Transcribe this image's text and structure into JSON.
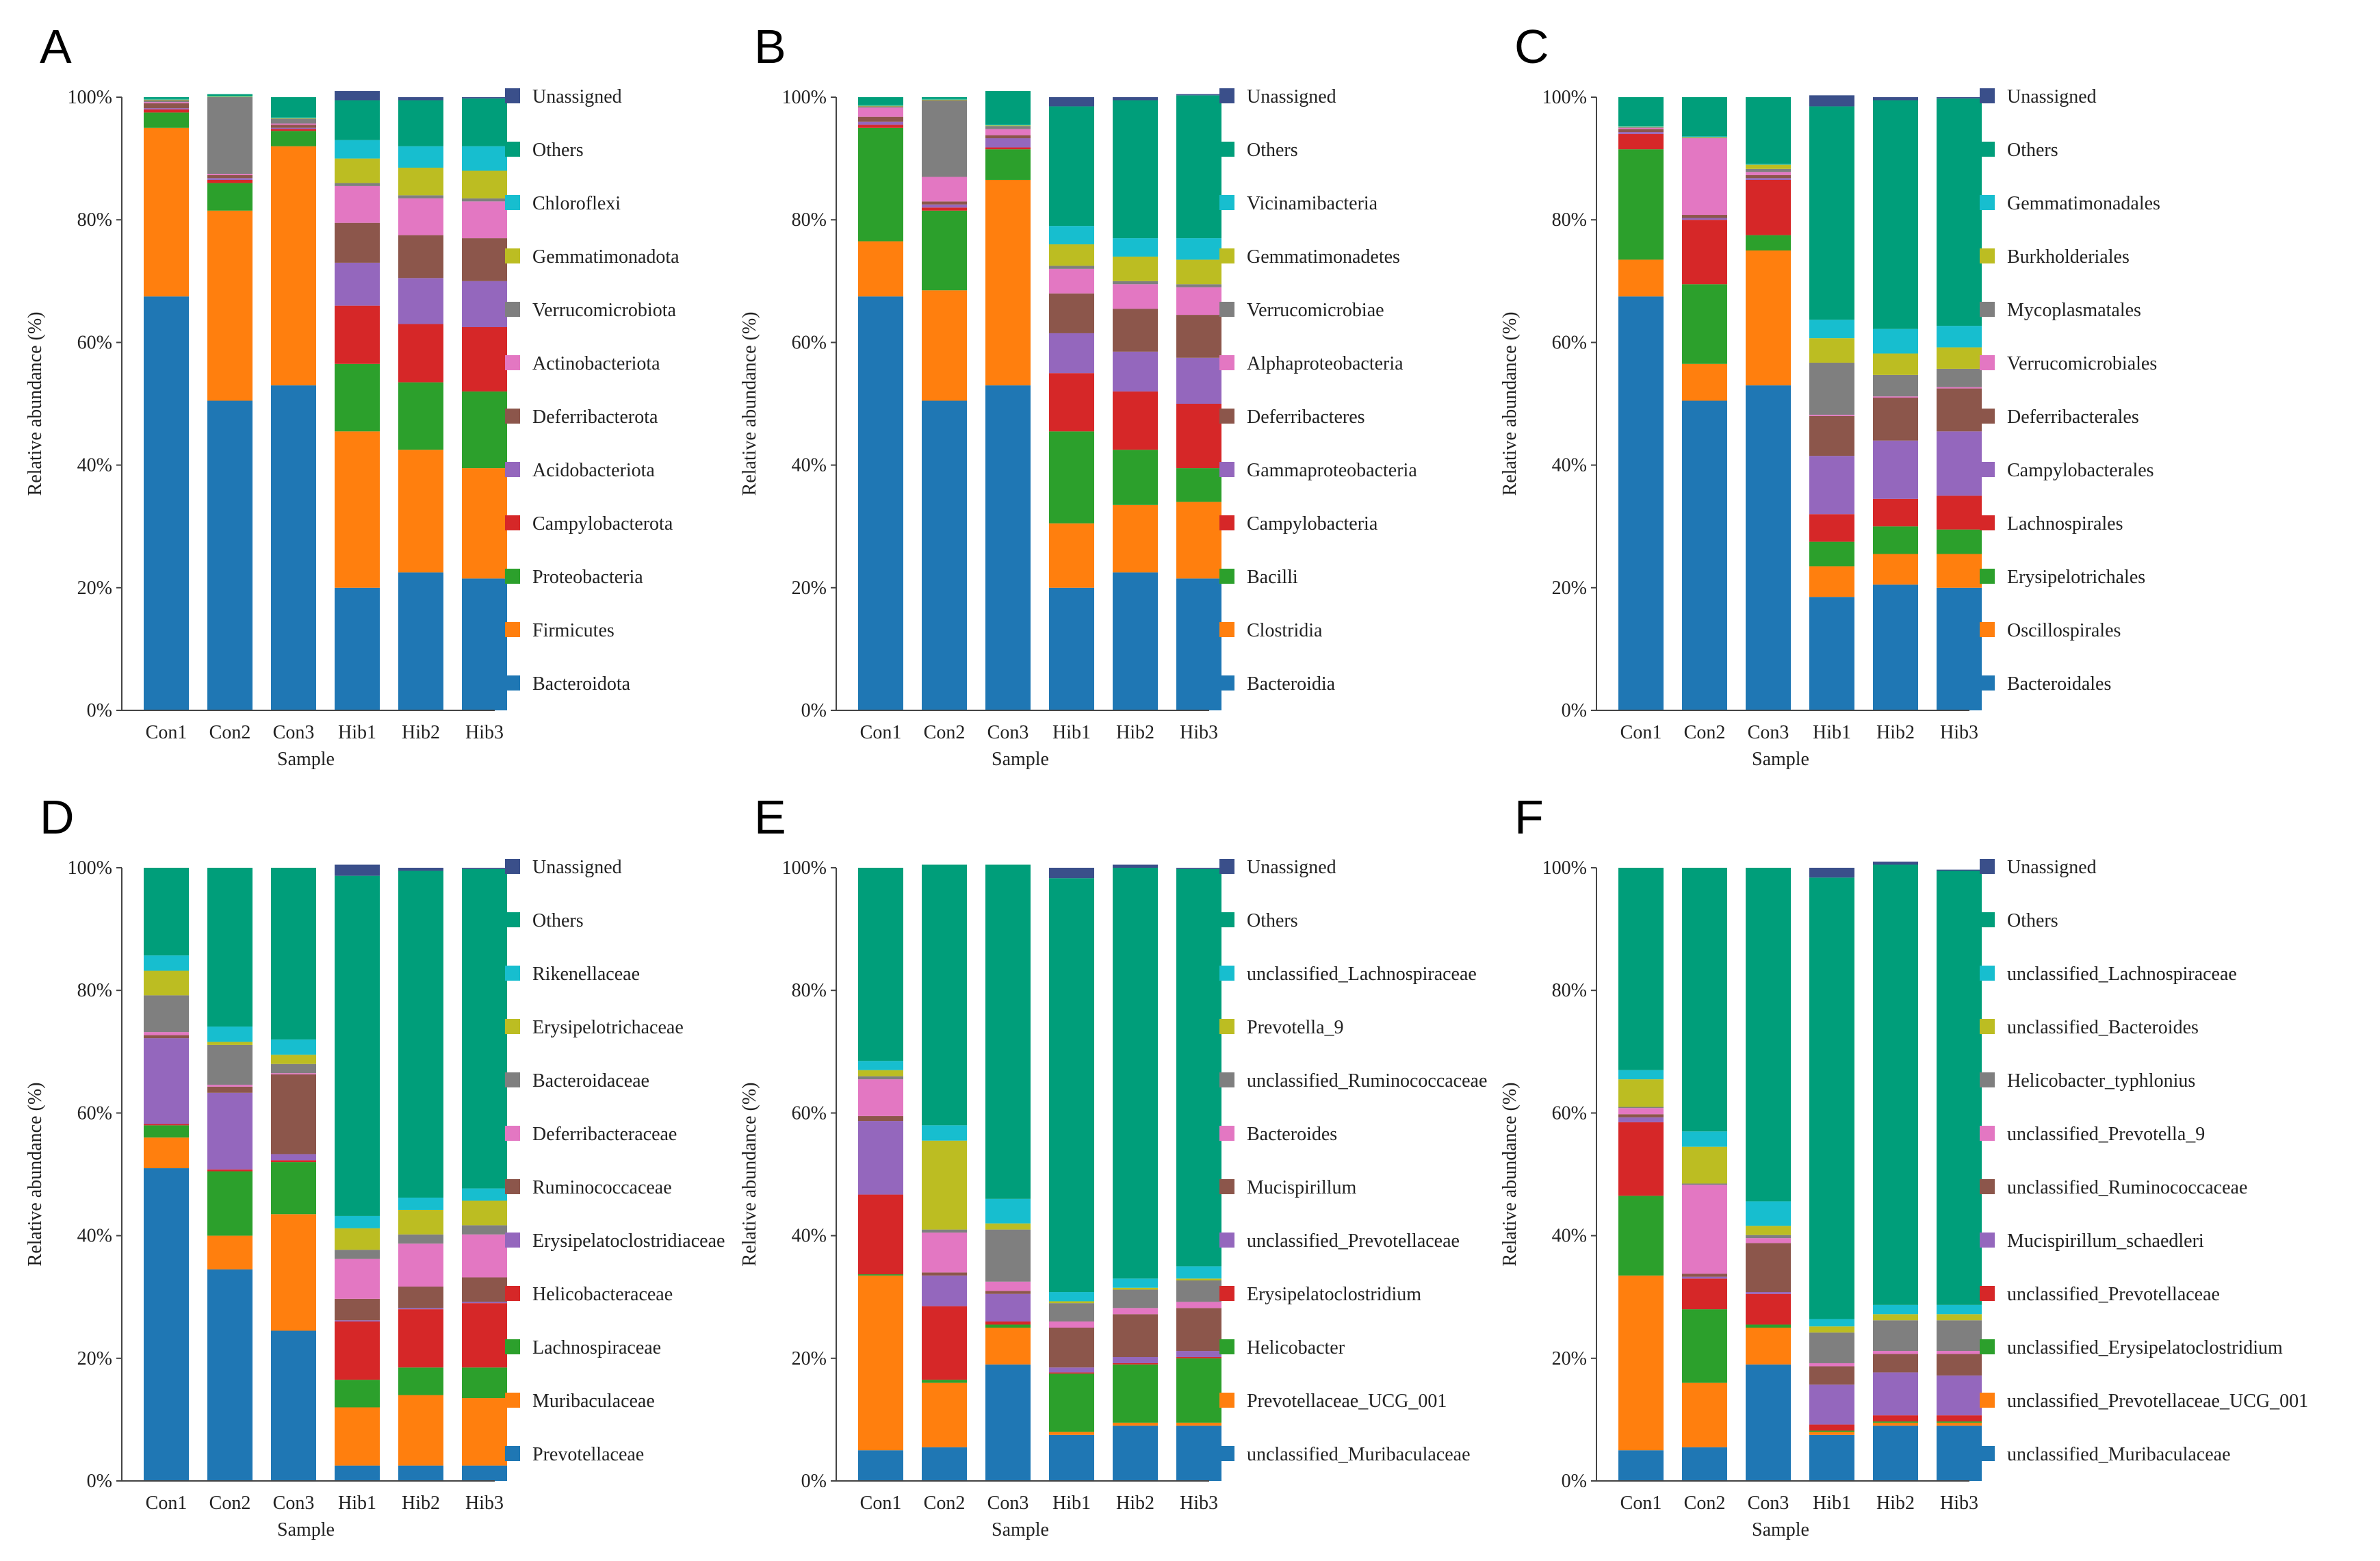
{
  "colors": [
    "#1f77b4",
    "#ff7f0e",
    "#2ca02c",
    "#d62728",
    "#9467bd",
    "#8c564b",
    "#e377c2",
    "#7f7f7f",
    "#bcbd22",
    "#17becf",
    "#009e7a",
    "#3a4f8a"
  ],
  "chart_data": [
    {
      "type": "bar",
      "panel": "A",
      "xlabel": "Sample",
      "ylabel": "Relative abundance (%)",
      "ylim": [
        0,
        100
      ],
      "yticks": [
        "0%",
        "20%",
        "40%",
        "60%",
        "80%",
        "100%"
      ],
      "categories": [
        "Con1",
        "Con2",
        "Con3",
        "Hib1",
        "Hib2",
        "Hib3"
      ],
      "series": [
        {
          "name": "Bacteroidota",
          "values": [
            67.5,
            50.5,
            53.0,
            20.0,
            22.5,
            21.5
          ]
        },
        {
          "name": "Firmicutes",
          "values": [
            27.5,
            31.0,
            39.0,
            25.5,
            20.0,
            18.0
          ]
        },
        {
          "name": "Proteobacteria",
          "values": [
            2.5,
            4.5,
            2.5,
            11.0,
            11.0,
            12.5
          ]
        },
        {
          "name": "Campylobacterota",
          "values": [
            0.5,
            0.5,
            0.3,
            9.5,
            9.5,
            10.5
          ]
        },
        {
          "name": "Acidobacteriota",
          "values": [
            0.2,
            0.3,
            0.2,
            7.0,
            7.5,
            7.5
          ]
        },
        {
          "name": "Deferribacterota",
          "values": [
            0.8,
            0.5,
            0.5,
            6.5,
            7.0,
            7.0
          ]
        },
        {
          "name": "Actinobacteriota",
          "values": [
            0.2,
            0.2,
            0.2,
            6.0,
            6.0,
            6.0
          ]
        },
        {
          "name": "Verrucomicrobiota",
          "values": [
            0.3,
            12.5,
            0.8,
            0.5,
            0.5,
            0.5
          ]
        },
        {
          "name": "Gemmatimonadota",
          "values": [
            0.1,
            0.1,
            0.1,
            4.0,
            4.5,
            4.5
          ]
        },
        {
          "name": "Chloroflexi",
          "values": [
            0.1,
            0.1,
            0.1,
            3.0,
            3.5,
            4.0
          ]
        },
        {
          "name": "Others",
          "values": [
            0.3,
            0.3,
            3.3,
            6.5,
            7.5,
            7.8
          ]
        },
        {
          "name": "Unassigned",
          "values": [
            0.0,
            0.0,
            0.0,
            1.5,
            0.5,
            0.2
          ]
        }
      ]
    },
    {
      "type": "bar",
      "panel": "B",
      "xlabel": "Sample",
      "ylabel": "Relative abundance (%)",
      "ylim": [
        0,
        100
      ],
      "yticks": [
        "0%",
        "20%",
        "40%",
        "60%",
        "80%",
        "100%"
      ],
      "categories": [
        "Con1",
        "Con2",
        "Con3",
        "Hib1",
        "Hib2",
        "Hib3"
      ],
      "series": [
        {
          "name": "Bacteroidia",
          "values": [
            67.5,
            50.5,
            53.0,
            20.0,
            22.5,
            21.5
          ]
        },
        {
          "name": "Clostridia",
          "values": [
            9.0,
            18.0,
            33.5,
            10.5,
            11.0,
            12.5
          ]
        },
        {
          "name": "Bacilli",
          "values": [
            18.5,
            13.0,
            5.0,
            15.0,
            9.0,
            5.5
          ]
        },
        {
          "name": "Campylobacteria",
          "values": [
            0.5,
            0.5,
            0.3,
            9.5,
            9.5,
            10.5
          ]
        },
        {
          "name": "Gammaproteobacteria",
          "values": [
            0.5,
            0.5,
            1.5,
            6.5,
            6.5,
            7.5
          ]
        },
        {
          "name": "Deferribacteres",
          "values": [
            0.8,
            0.5,
            0.5,
            6.5,
            7.0,
            7.0
          ]
        },
        {
          "name": "Alphaproteobacteria",
          "values": [
            1.5,
            4.0,
            1.0,
            4.0,
            4.0,
            4.5
          ]
        },
        {
          "name": "Verrucomicrobiae",
          "values": [
            0.2,
            12.5,
            0.5,
            0.5,
            0.5,
            0.5
          ]
        },
        {
          "name": "Gemmatimonadetes",
          "values": [
            0.1,
            0.1,
            0.1,
            3.5,
            4.0,
            4.0
          ]
        },
        {
          "name": "Vicinamibacteria",
          "values": [
            0.1,
            0.1,
            0.1,
            3.0,
            3.0,
            3.5
          ]
        },
        {
          "name": "Others",
          "values": [
            1.3,
            0.3,
            5.5,
            19.5,
            22.5,
            23.3
          ]
        },
        {
          "name": "Unassigned",
          "values": [
            0.0,
            0.0,
            0.0,
            1.5,
            0.5,
            0.2
          ]
        }
      ]
    },
    {
      "type": "bar",
      "panel": "C",
      "xlabel": "Sample",
      "ylabel": "Relative abundance (%)",
      "ylim": [
        0,
        100
      ],
      "yticks": [
        "0%",
        "20%",
        "40%",
        "60%",
        "80%",
        "100%"
      ],
      "categories": [
        "Con1",
        "Con2",
        "Con3",
        "Hib1",
        "Hib2",
        "Hib3"
      ],
      "series": [
        {
          "name": "Bacteroidales",
          "values": [
            67.5,
            50.5,
            53.0,
            18.5,
            20.5,
            20.0
          ]
        },
        {
          "name": "Oscillospirales",
          "values": [
            6.0,
            6.0,
            22.0,
            5.0,
            5.0,
            5.5
          ]
        },
        {
          "name": "Erysipelotrichales",
          "values": [
            18.0,
            13.0,
            2.5,
            4.0,
            4.5,
            4.0
          ]
        },
        {
          "name": "Lachnospirales",
          "values": [
            2.5,
            10.5,
            9.0,
            4.5,
            4.5,
            5.5
          ]
        },
        {
          "name": "Campylobacterales",
          "values": [
            0.3,
            0.3,
            0.3,
            9.5,
            9.5,
            10.5
          ]
        },
        {
          "name": "Deferribacterales",
          "values": [
            0.5,
            0.5,
            0.5,
            6.5,
            7.0,
            7.0
          ]
        },
        {
          "name": "Verrucomicrobiales",
          "values": [
            0.2,
            12.5,
            0.5,
            0.2,
            0.2,
            0.2
          ]
        },
        {
          "name": "Mycoplasmatales",
          "values": [
            0.1,
            0.1,
            0.5,
            8.5,
            3.5,
            3.0
          ]
        },
        {
          "name": "Burkholderiales",
          "values": [
            0.1,
            0.1,
            0.7,
            4.0,
            3.5,
            3.5
          ]
        },
        {
          "name": "Gemmatimonadales",
          "values": [
            0.1,
            0.1,
            0.1,
            3.0,
            4.0,
            3.5
          ]
        },
        {
          "name": "Others",
          "values": [
            4.7,
            6.4,
            10.9,
            34.8,
            37.3,
            37.1
          ]
        },
        {
          "name": "Unassigned",
          "values": [
            0.0,
            0.0,
            0.0,
            1.8,
            0.5,
            0.2
          ]
        }
      ]
    },
    {
      "type": "bar",
      "panel": "D",
      "xlabel": "Sample",
      "ylabel": "Relative abundance (%)",
      "ylim": [
        0,
        100
      ],
      "yticks": [
        "0%",
        "20%",
        "40%",
        "60%",
        "80%",
        "100%"
      ],
      "categories": [
        "Con1",
        "Con2",
        "Con3",
        "Hib1",
        "Hib2",
        "Hib3"
      ],
      "series": [
        {
          "name": "Prevotellaceae",
          "values": [
            51.0,
            34.5,
            24.5,
            2.5,
            2.5,
            2.5
          ]
        },
        {
          "name": "Muribaculaceae",
          "values": [
            5.0,
            5.5,
            19.0,
            9.5,
            11.5,
            11.0
          ]
        },
        {
          "name": "Lachnospiraceae",
          "values": [
            2.0,
            10.5,
            8.5,
            4.5,
            4.5,
            5.0
          ]
        },
        {
          "name": "Helicobacteraceae",
          "values": [
            0.2,
            0.3,
            0.3,
            9.5,
            9.5,
            10.5
          ]
        },
        {
          "name": "Erysipelatoclostridiaceae",
          "values": [
            14.0,
            12.5,
            1.0,
            0.2,
            0.2,
            0.2
          ]
        },
        {
          "name": "Ruminococcaceae",
          "values": [
            0.5,
            1.0,
            13.0,
            3.5,
            3.5,
            4.0
          ]
        },
        {
          "name": "Deferribacteraceae",
          "values": [
            0.5,
            0.3,
            0.2,
            6.5,
            7.0,
            7.0
          ]
        },
        {
          "name": "Bacteroidaceae",
          "values": [
            6.0,
            6.5,
            1.5,
            1.5,
            1.5,
            1.5
          ]
        },
        {
          "name": "Erysipelotrichaceae",
          "values": [
            4.0,
            0.5,
            1.5,
            3.5,
            4.0,
            4.0
          ]
        },
        {
          "name": "Rikenellaceae",
          "values": [
            2.5,
            2.5,
            2.5,
            2.0,
            2.0,
            2.0
          ]
        },
        {
          "name": "Others",
          "values": [
            14.3,
            25.9,
            28.0,
            55.5,
            53.3,
            52.1
          ]
        },
        {
          "name": "Unassigned",
          "values": [
            0.0,
            0.0,
            0.0,
            1.8,
            0.5,
            0.2
          ]
        }
      ]
    },
    {
      "type": "bar",
      "panel": "E",
      "xlabel": "Sample",
      "ylabel": "Relative abundance (%)",
      "ylim": [
        0,
        100
      ],
      "yticks": [
        "0%",
        "20%",
        "40%",
        "60%",
        "80%",
        "100%"
      ],
      "categories": [
        "Con1",
        "Con2",
        "Con3",
        "Hib1",
        "Hib2",
        "Hib3"
      ],
      "series": [
        {
          "name": "unclassified_Muribaculaceae",
          "values": [
            5.0,
            5.5,
            19.0,
            7.5,
            9.0,
            9.0
          ]
        },
        {
          "name": "Prevotellaceae_UCG_001",
          "values": [
            28.5,
            10.5,
            6.0,
            0.5,
            0.5,
            0.5
          ]
        },
        {
          "name": "Helicobacter",
          "values": [
            0.2,
            0.5,
            0.5,
            9.5,
            9.5,
            10.5
          ]
        },
        {
          "name": "Erysipelatoclostridium",
          "values": [
            13.0,
            12.0,
            0.5,
            0.2,
            0.2,
            0.2
          ]
        },
        {
          "name": "unclassified_Prevotellaceae",
          "values": [
            12.0,
            5.0,
            4.5,
            0.8,
            1.0,
            1.0
          ]
        },
        {
          "name": "Mucispirillum",
          "values": [
            0.8,
            0.5,
            0.5,
            6.5,
            7.0,
            7.0
          ]
        },
        {
          "name": "Bacteroides",
          "values": [
            6.0,
            6.5,
            1.5,
            1.0,
            1.0,
            1.0
          ]
        },
        {
          "name": "unclassified_Ruminococcaceae",
          "values": [
            0.5,
            0.5,
            8.5,
            3.0,
            3.0,
            3.5
          ]
        },
        {
          "name": "Prevotella_9",
          "values": [
            1.0,
            14.5,
            1.0,
            0.3,
            0.3,
            0.3
          ]
        },
        {
          "name": "unclassified_Lachnospiraceae",
          "values": [
            1.5,
            2.5,
            4.0,
            1.5,
            1.5,
            2.0
          ]
        },
        {
          "name": "Others",
          "values": [
            31.5,
            42.5,
            54.5,
            67.5,
            67.0,
            64.8
          ]
        },
        {
          "name": "Unassigned",
          "values": [
            0.0,
            0.0,
            0.0,
            1.7,
            0.5,
            0.2
          ]
        }
      ]
    },
    {
      "type": "bar",
      "panel": "F",
      "xlabel": "Sample",
      "ylabel": "Relative abundance (%)",
      "ylim": [
        0,
        100
      ],
      "yticks": [
        "0%",
        "20%",
        "40%",
        "60%",
        "80%",
        "100%"
      ],
      "categories": [
        "Con1",
        "Con2",
        "Con3",
        "Hib1",
        "Hib2",
        "Hib3"
      ],
      "series": [
        {
          "name": "unclassified_Muribaculaceae",
          "values": [
            5.0,
            5.5,
            19.0,
            7.5,
            9.0,
            9.0
          ]
        },
        {
          "name": "unclassified_Prevotellaceae_UCG_001",
          "values": [
            28.5,
            10.5,
            6.0,
            0.5,
            0.5,
            0.5
          ]
        },
        {
          "name": "unclassified_Erysipelatoclostridium",
          "values": [
            13.0,
            12.0,
            0.5,
            0.2,
            0.2,
            0.2
          ]
        },
        {
          "name": "unclassified_Prevotellaceae",
          "values": [
            12.0,
            5.0,
            5.0,
            1.0,
            1.0,
            1.0
          ]
        },
        {
          "name": "Mucispirillum_schaedleri",
          "values": [
            0.8,
            0.3,
            0.3,
            6.5,
            7.0,
            6.5
          ]
        },
        {
          "name": "unclassified_Ruminococcaceae",
          "values": [
            0.5,
            0.5,
            8.0,
            3.0,
            3.0,
            3.5
          ]
        },
        {
          "name": "unclassified_Prevotella_9",
          "values": [
            1.0,
            14.5,
            0.8,
            0.5,
            0.5,
            0.5
          ]
        },
        {
          "name": "Helicobacter_typhlonius",
          "values": [
            0.2,
            0.2,
            0.5,
            5.0,
            5.0,
            5.0
          ]
        },
        {
          "name": "unclassified_Bacteroides",
          "values": [
            4.5,
            6.0,
            1.5,
            1.0,
            1.0,
            1.0
          ]
        },
        {
          "name": "unclassified_Lachnospiraceae",
          "values": [
            1.5,
            2.5,
            4.0,
            1.2,
            1.5,
            1.5
          ]
        },
        {
          "name": "Others",
          "values": [
            33.0,
            43.0,
            54.4,
            72.0,
            71.8,
            70.8
          ]
        },
        {
          "name": "Unassigned",
          "values": [
            0.0,
            0.0,
            0.0,
            1.6,
            0.5,
            0.2
          ]
        }
      ]
    }
  ]
}
